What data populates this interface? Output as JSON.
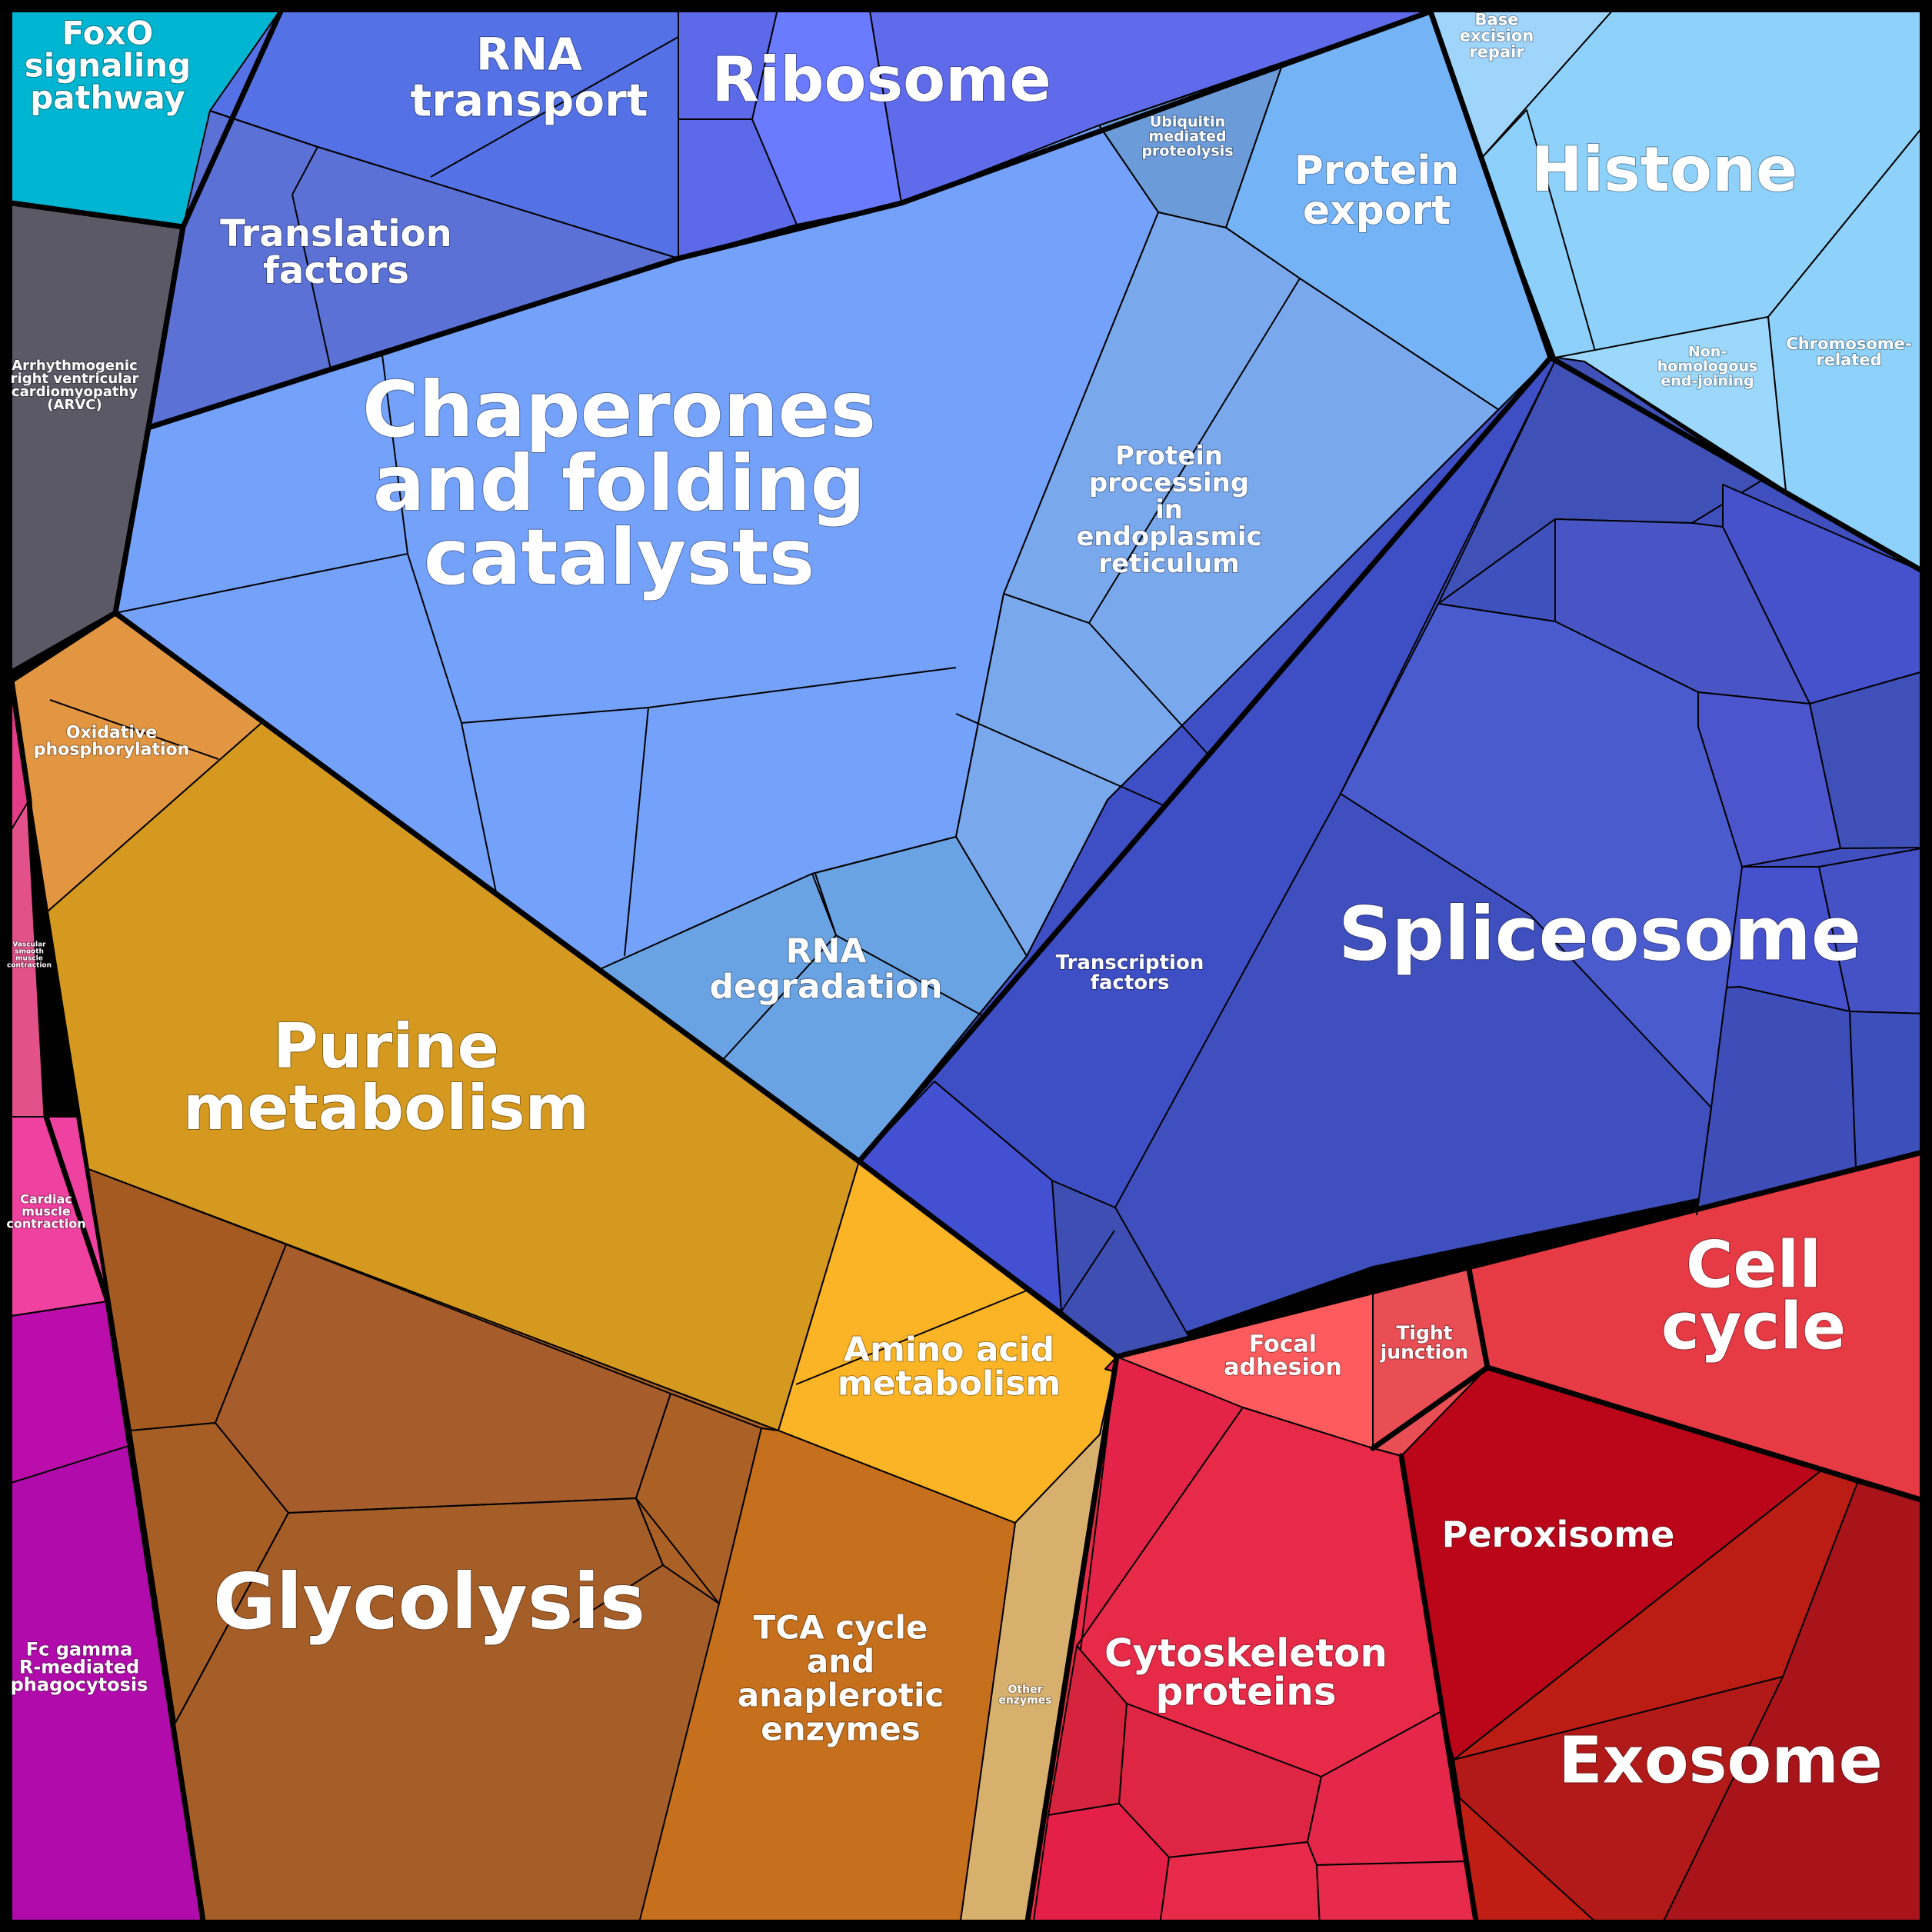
{
  "labels": {
    "foxo": [
      "FoxO",
      "signaling",
      "pathway"
    ],
    "rna_transport": [
      "RNA",
      "transport"
    ],
    "ribosome": [
      "Ribosome"
    ],
    "translation_factors": [
      "Translation",
      "factors"
    ],
    "ubiquitin": [
      "Ubiquitin",
      "mediated",
      "proteolysis"
    ],
    "protein_export": [
      "Protein",
      "export"
    ],
    "base_excision": [
      "Base",
      "excision",
      "repair"
    ],
    "histone": [
      "Histone"
    ],
    "arvc": [
      "Arrhythmogenic",
      "right ventricular",
      "cardiomyopathy",
      "(ARVC)"
    ],
    "chaperones": [
      "Chaperones",
      "and folding",
      "catalysts"
    ],
    "protein_processing": [
      "Protein",
      "processing",
      "in",
      "endoplasmic",
      "reticulum"
    ],
    "nhej": [
      "Non-",
      "homologous",
      "end-joining"
    ],
    "chromosome": [
      "Chromosome-",
      "related"
    ],
    "oxphos": [
      "Oxidative",
      "phosphorylation"
    ],
    "vascular": [
      "Vascular",
      "smooth",
      "muscle",
      "contraction"
    ],
    "rna_degradation": [
      "RNA",
      "degradation"
    ],
    "transcription_factors": [
      "Transcription",
      "factors"
    ],
    "spliceosome": [
      "Spliceosome"
    ],
    "purine": [
      "Purine",
      "metabolism"
    ],
    "cardiac": [
      "Cardiac",
      "muscle",
      "contraction"
    ],
    "focal_adhesion": [
      "Focal",
      "adhesion"
    ],
    "tight_junction": [
      "Tight",
      "junction"
    ],
    "cell_cycle": [
      "Cell",
      "cycle"
    ],
    "amino_acid": [
      "Amino acid",
      "metabolism"
    ],
    "peroxisome": [
      "Peroxisome"
    ],
    "glycolysis": [
      "Glycolysis"
    ],
    "fc_gamma": [
      "Fc gamma",
      "R-mediated",
      "phagocytosis"
    ],
    "tca": [
      "TCA cycle",
      "and",
      "anaplerotic",
      "enzymes"
    ],
    "other_enzymes": [
      "Other",
      "enzymes"
    ],
    "cytoskeleton": [
      "Cytoskeleton",
      "proteins"
    ],
    "exosome": [
      "Exosome"
    ]
  },
  "colors": {
    "foxo": "#00b5d1",
    "rna_transport": "#5471e5",
    "ribosome": "#5f6bea",
    "translation_factors": "#5b71d5",
    "ubiquitin": "#6b9bd8",
    "protein_export": "#75b3f7",
    "histone": "#8ed2fb",
    "arvc": "#5c5966",
    "chaperones": "#74a1fa",
    "protein_processing": "#7aa8ec",
    "spliceosome": "#3f4fbe",
    "transcription_factors": "#3e4ec4",
    "rna_degradation": "#6aa3e3",
    "oxphos": "#e39642",
    "purine": "#d5991f",
    "vascular": "#e2518a",
    "cardiac": "#ef41a0",
    "fc_gamma": "#b20bab",
    "glycolysis": "#a65e28",
    "tca": "#c6701e",
    "amino_acid": "#fbb425",
    "other_enzymes": "#d8b06e",
    "focal_adhesion": "#fd5b5e",
    "tight_junction": "#e94e54",
    "cell_cycle": "#e63a44",
    "cytoskeleton": "#e62a47",
    "peroxisome": "#bb0519",
    "exosome": "#b11a18"
  }
}
